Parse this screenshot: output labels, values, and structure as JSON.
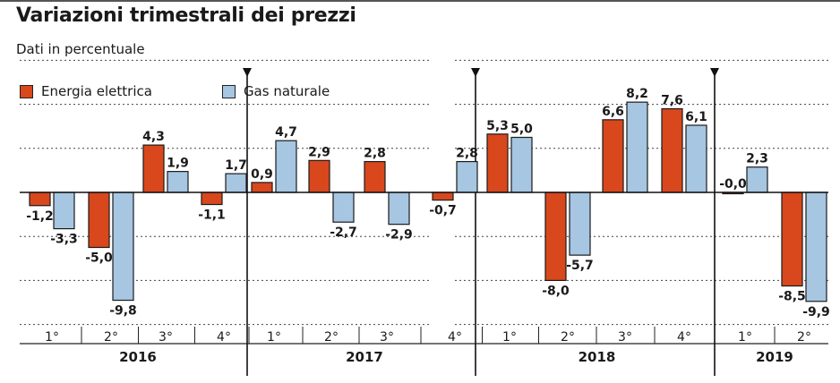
{
  "title": "Variazioni trimestrali dei prezzi",
  "subtitle": "Dati in percentuale",
  "colors": {
    "energy": "#d9471c",
    "gas": "#a6c6e2",
    "outline": "#1a1a1a"
  },
  "chart_data": {
    "type": "bar",
    "title": "Variazioni trimestrali dei prezzi",
    "subtitle": "Dati in percentuale",
    "ylim": [
      -12,
      12
    ],
    "grid": true,
    "legend_position": "top-left",
    "categories": [
      "1°",
      "2°",
      "3°",
      "4°",
      "1°",
      "2°",
      "3°",
      "4°",
      "1°",
      "2°",
      "3°",
      "4°",
      "1°",
      "2°"
    ],
    "years": [
      {
        "label": "2016",
        "quarters": 4
      },
      {
        "label": "2017",
        "quarters": 4
      },
      {
        "label": "2018",
        "quarters": 4
      },
      {
        "label": "2019",
        "quarters": 2
      }
    ],
    "series": [
      {
        "name": "Energia elettrica",
        "values": [
          -1.2,
          -5.0,
          4.3,
          -1.1,
          0.9,
          2.9,
          2.8,
          -0.7,
          5.3,
          -8.0,
          6.6,
          7.6,
          -0.0,
          -8.5
        ],
        "labels": [
          "-1,2",
          "-5,0",
          "4,3",
          "-1,1",
          "0,9",
          "2,9",
          "2,8",
          "-0,7",
          "5,3",
          "-8,0",
          "6,6",
          "7,6",
          "-0,0",
          "-8,5"
        ]
      },
      {
        "name": "Gas naturale",
        "values": [
          -3.3,
          -9.8,
          1.9,
          1.7,
          4.7,
          -2.7,
          -2.9,
          2.8,
          5.0,
          -5.7,
          8.2,
          6.1,
          2.3,
          -9.9
        ],
        "labels": [
          "-3,3",
          "-9,8",
          "1,9",
          "1,7",
          "4,7",
          "-2,7",
          "-2,9",
          "2,8",
          "5,0",
          "-5,7",
          "8,2",
          "6,1",
          "2,3",
          "-9,9"
        ]
      }
    ]
  }
}
